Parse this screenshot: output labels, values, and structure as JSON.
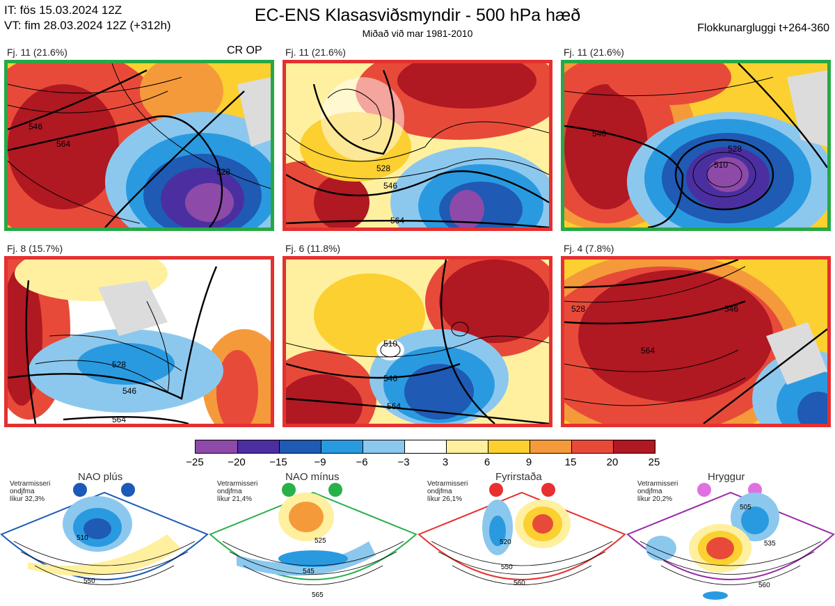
{
  "header": {
    "it_line": "IT: fös 15.03.2024 12Z",
    "vt_line": "VT: fim 28.03.2024 12Z  (+312h)",
    "title": "EC-ENS Klasasviðsmyndir - 500 hPa hæð",
    "subtitle": "Miðað við mar 1981-2010",
    "window": "Flokkunargluggi t+264-360"
  },
  "panels": [
    {
      "label": "Fj. 11 (21.6%)",
      "badge": "CR OP",
      "border": "#28a845",
      "contours": [
        "528",
        "546",
        "564",
        "528",
        "546"
      ]
    },
    {
      "label": "Fj. 11 (21.6%)",
      "badge": "",
      "border": "#e53030",
      "contours": [
        "528",
        "546",
        "564",
        "528",
        "546"
      ]
    },
    {
      "label": "Fj. 11 (21.6%)",
      "badge": "",
      "border": "#28a845",
      "contours": [
        "510",
        "528",
        "546",
        "528",
        "546"
      ]
    },
    {
      "label": "Fj. 8 (15.7%)",
      "badge": "",
      "border": "#e53030",
      "contours": [
        "528",
        "546",
        "564",
        "528",
        "546"
      ]
    },
    {
      "label": "Fj. 6 (11.8%)",
      "badge": "",
      "border": "#e53030",
      "contours": [
        "510",
        "528",
        "546",
        "564",
        "528"
      ]
    },
    {
      "label": "Fj. 4 (7.8%)",
      "badge": "",
      "border": "#e53030",
      "contours": [
        "528",
        "546",
        "564",
        "546",
        "528"
      ]
    }
  ],
  "colorbar": {
    "ticks": [
      "−25",
      "−20",
      "−15",
      "−9",
      "−6",
      "−3",
      "3",
      "6",
      "9",
      "15",
      "20",
      "25"
    ],
    "colors": [
      "#8e4aa8",
      "#4b2fa0",
      "#1f5ab4",
      "#2a9ae0",
      "#8cc8ee",
      "#ffffff",
      "#fff0a0",
      "#fbd030",
      "#f59a3a",
      "#e84a3a",
      "#b01822"
    ]
  },
  "regimes": [
    {
      "title": "NAO plús",
      "note": [
        "Vetrarmisseri",
        "ondjfma",
        "líkur 32,3%"
      ],
      "color": "#1a5ab8",
      "contours": [
        "510",
        "550"
      ]
    },
    {
      "title": "NAO mínus",
      "note": [
        "Vetrarmisseri",
        "ondjfma",
        "líkur 21,4%"
      ],
      "color": "#28b04a",
      "contours": [
        "525",
        "545",
        "565"
      ]
    },
    {
      "title": "Fyrirstaða",
      "note": [
        "Vetrarmisseri",
        "ondjfma",
        "líkur 26,1%"
      ],
      "color": "#e83030",
      "contours": [
        "520",
        "550",
        "560"
      ]
    },
    {
      "title": "Hryggur",
      "note": [
        "Vetrarmisseri",
        "ondjfma",
        "líkur 20,2%"
      ],
      "color": "#e070e0",
      "contours": [
        "505",
        "535",
        "560"
      ]
    }
  ]
}
